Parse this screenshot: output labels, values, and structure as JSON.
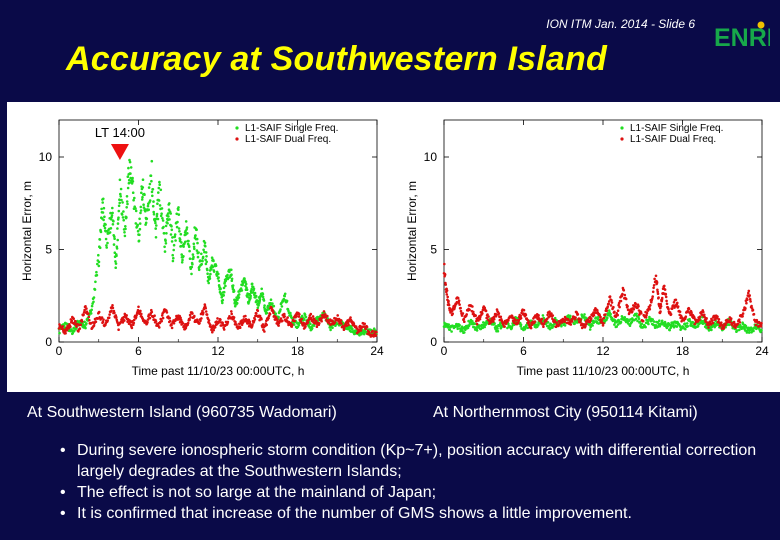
{
  "slide": {
    "header": "ION ITM Jan. 2014 - Slide 6",
    "logo_text": "ENRI",
    "title": "Accuracy at Southwestern Island"
  },
  "colors": {
    "background": "#0a0a48",
    "title": "#ffff00",
    "single_freq": "#22dd22",
    "dual_freq": "#dd1111",
    "marker": "#ee1111"
  },
  "chart_data": [
    {
      "type": "scatter",
      "title": "",
      "annotation": "LT 14:00",
      "annotation_x": 4.6,
      "xlabel": "Time past 11/10/23 00:00UTC, h",
      "ylabel": "Horizontal Error, m",
      "xlim": [
        0,
        24
      ],
      "ylim": [
        0,
        12
      ],
      "xticks": [
        "0",
        "6",
        "12",
        "18",
        "24"
      ],
      "yticks": [
        "0",
        "5",
        "10"
      ],
      "legend": [
        "L1-SAIF Single Freq.",
        "L1-SAIF Dual Freq."
      ],
      "legend_position": "top-right",
      "series": [
        {
          "name": "L1-SAIF Single Freq.",
          "points": [
            [
              0,
              0.6
            ],
            [
              0.5,
              0.9
            ],
            [
              1,
              0.6
            ],
            [
              1.5,
              1.1
            ],
            [
              2,
              0.9
            ],
            [
              2.5,
              1.8
            ],
            [
              3,
              4.5
            ],
            [
              3.3,
              7.5
            ],
            [
              3.6,
              5.5
            ],
            [
              4,
              7.0
            ],
            [
              4.3,
              4.2
            ],
            [
              4.6,
              8.5
            ],
            [
              5,
              6.0
            ],
            [
              5.3,
              9.6
            ],
            [
              5.6,
              8.0
            ],
            [
              6,
              5.5
            ],
            [
              6.3,
              8.5
            ],
            [
              6.6,
              6.5
            ],
            [
              7,
              9.0
            ],
            [
              7.3,
              6.0
            ],
            [
              7.6,
              8.2
            ],
            [
              8,
              5.2
            ],
            [
              8.3,
              7.6
            ],
            [
              8.6,
              4.8
            ],
            [
              9,
              7.0
            ],
            [
              9.3,
              4.5
            ],
            [
              9.6,
              6.0
            ],
            [
              10,
              3.8
            ],
            [
              10.3,
              6.2
            ],
            [
              10.6,
              4.0
            ],
            [
              11,
              5.2
            ],
            [
              11.3,
              3.2
            ],
            [
              11.6,
              4.4
            ],
            [
              12,
              3.6
            ],
            [
              12.3,
              2.2
            ],
            [
              12.6,
              3.4
            ],
            [
              13,
              3.8
            ],
            [
              13.3,
              2.0
            ],
            [
              13.6,
              2.6
            ],
            [
              14,
              3.4
            ],
            [
              14.3,
              2.2
            ],
            [
              14.6,
              3.0
            ],
            [
              15,
              2.0
            ],
            [
              15.3,
              2.8
            ],
            [
              15.6,
              1.6
            ],
            [
              16,
              2.2
            ],
            [
              16.5,
              1.2
            ],
            [
              17,
              2.6
            ],
            [
              17.5,
              1.3
            ],
            [
              18,
              0.9
            ],
            [
              18.5,
              1.4
            ],
            [
              19,
              0.8
            ],
            [
              19.5,
              1.2
            ],
            [
              20,
              1.5
            ],
            [
              20.5,
              0.8
            ],
            [
              21,
              1.1
            ],
            [
              21.5,
              0.9
            ],
            [
              22,
              0.7
            ],
            [
              22.5,
              0.5
            ],
            [
              23,
              0.6
            ],
            [
              23.5,
              0.5
            ],
            [
              24,
              0.6
            ]
          ]
        },
        {
          "name": "L1-SAIF Dual Freq.",
          "points": [
            [
              0,
              0.9
            ],
            [
              0.5,
              0.5
            ],
            [
              1,
              1.2
            ],
            [
              1.5,
              0.7
            ],
            [
              2,
              1.8
            ],
            [
              2.5,
              0.8
            ],
            [
              3,
              1.5
            ],
            [
              3.5,
              0.9
            ],
            [
              4,
              1.9
            ],
            [
              4.5,
              0.8
            ],
            [
              5,
              1.4
            ],
            [
              5.5,
              0.9
            ],
            [
              6,
              1.8
            ],
            [
              6.5,
              1.0
            ],
            [
              7,
              1.6
            ],
            [
              7.5,
              0.8
            ],
            [
              8,
              1.7
            ],
            [
              8.5,
              0.9
            ],
            [
              9,
              1.4
            ],
            [
              9.5,
              0.8
            ],
            [
              10,
              1.5
            ],
            [
              10.5,
              1.0
            ],
            [
              11,
              1.9
            ],
            [
              11.5,
              0.6
            ],
            [
              12,
              1.2
            ],
            [
              12.5,
              0.8
            ],
            [
              13,
              1.5
            ],
            [
              13.5,
              0.7
            ],
            [
              14,
              1.3
            ],
            [
              14.5,
              0.9
            ],
            [
              15,
              1.6
            ],
            [
              15.5,
              0.7
            ],
            [
              16,
              1.8
            ],
            [
              16.5,
              1.0
            ],
            [
              17,
              1.4
            ],
            [
              17.5,
              0.9
            ],
            [
              18,
              1.6
            ],
            [
              18.5,
              0.8
            ],
            [
              19,
              1.4
            ],
            [
              19.5,
              0.9
            ],
            [
              20,
              1.5
            ],
            [
              20.5,
              1.0
            ],
            [
              21,
              1.3
            ],
            [
              21.5,
              0.8
            ],
            [
              22,
              1.2
            ],
            [
              22.5,
              0.6
            ],
            [
              23,
              0.9
            ],
            [
              23.5,
              0.4
            ],
            [
              24,
              0.5
            ]
          ]
        }
      ]
    },
    {
      "type": "scatter",
      "title": "",
      "xlabel": "Time past 11/10/23 00:00UTC, h",
      "ylabel": "Horizontal Error, m",
      "xlim": [
        0,
        24
      ],
      "ylim": [
        0,
        12
      ],
      "xticks": [
        "0",
        "6",
        "12",
        "18",
        "24"
      ],
      "yticks": [
        "0",
        "5",
        "10"
      ],
      "legend": [
        "L1-SAIF Single Freq.",
        "L1-SAIF Dual Freq."
      ],
      "legend_position": "top-right",
      "series": [
        {
          "name": "L1-SAIF Single Freq.",
          "points": [
            [
              0,
              1.0
            ],
            [
              0.5,
              0.7
            ],
            [
              1,
              0.9
            ],
            [
              1.5,
              0.6
            ],
            [
              2,
              1.1
            ],
            [
              2.5,
              0.7
            ],
            [
              3,
              0.9
            ],
            [
              3.5,
              1.2
            ],
            [
              4,
              0.7
            ],
            [
              4.5,
              1.0
            ],
            [
              5,
              0.8
            ],
            [
              5.5,
              1.3
            ],
            [
              6,
              0.7
            ],
            [
              6.5,
              1.0
            ],
            [
              7,
              0.9
            ],
            [
              7.5,
              1.3
            ],
            [
              8,
              0.8
            ],
            [
              8.5,
              1.2
            ],
            [
              9,
              0.9
            ],
            [
              9.5,
              1.4
            ],
            [
              10,
              1.0
            ],
            [
              10.5,
              1.5
            ],
            [
              11,
              0.8
            ],
            [
              11.5,
              1.2
            ],
            [
              12,
              1.1
            ],
            [
              12.5,
              1.6
            ],
            [
              13,
              0.9
            ],
            [
              13.5,
              1.3
            ],
            [
              14,
              1.0
            ],
            [
              14.5,
              1.4
            ],
            [
              15,
              0.8
            ],
            [
              15.5,
              1.2
            ],
            [
              16,
              0.9
            ],
            [
              16.5,
              1.1
            ],
            [
              17,
              0.8
            ],
            [
              17.5,
              1.0
            ],
            [
              18,
              0.7
            ],
            [
              18.5,
              1.1
            ],
            [
              19,
              0.8
            ],
            [
              19.5,
              1.2
            ],
            [
              20,
              0.7
            ],
            [
              20.5,
              1.0
            ],
            [
              21,
              0.8
            ],
            [
              21.5,
              1.1
            ],
            [
              22,
              0.7
            ],
            [
              22.5,
              0.9
            ],
            [
              23,
              0.6
            ],
            [
              23.5,
              0.8
            ],
            [
              24,
              0.7
            ]
          ]
        },
        {
          "name": "L1-SAIF Dual Freq.",
          "points": [
            [
              0,
              4.0
            ],
            [
              0.3,
              2.2
            ],
            [
              0.6,
              1.5
            ],
            [
              1,
              2.4
            ],
            [
              1.5,
              1.2
            ],
            [
              2,
              2.0
            ],
            [
              2.5,
              1.1
            ],
            [
              3,
              1.8
            ],
            [
              3.5,
              1.0
            ],
            [
              4,
              1.6
            ],
            [
              4.5,
              0.9
            ],
            [
              5,
              1.5
            ],
            [
              5.5,
              1.0
            ],
            [
              6,
              1.7
            ],
            [
              6.5,
              0.8
            ],
            [
              7,
              1.4
            ],
            [
              7.5,
              1.0
            ],
            [
              8,
              1.6
            ],
            [
              8.5,
              0.9
            ],
            [
              9,
              1.3
            ],
            [
              9.5,
              1.0
            ],
            [
              10,
              1.5
            ],
            [
              10.5,
              0.8
            ],
            [
              11,
              1.2
            ],
            [
              11.5,
              1.8
            ],
            [
              12,
              1.0
            ],
            [
              12.5,
              2.4
            ],
            [
              13,
              1.3
            ],
            [
              13.5,
              2.8
            ],
            [
              14,
              1.5
            ],
            [
              14.5,
              2.1
            ],
            [
              15,
              1.2
            ],
            [
              15.5,
              1.8
            ],
            [
              16,
              3.5
            ],
            [
              16.3,
              1.6
            ],
            [
              16.6,
              3.0
            ],
            [
              17,
              1.4
            ],
            [
              17.5,
              2.2
            ],
            [
              18,
              1.1
            ],
            [
              18.5,
              1.8
            ],
            [
              19,
              1.0
            ],
            [
              19.5,
              1.6
            ],
            [
              20,
              0.9
            ],
            [
              20.5,
              1.4
            ],
            [
              21,
              0.8
            ],
            [
              21.5,
              1.2
            ],
            [
              22,
              0.9
            ],
            [
              22.5,
              1.4
            ],
            [
              23,
              2.6
            ],
            [
              23.5,
              1.1
            ],
            [
              24,
              0.9
            ]
          ]
        }
      ]
    }
  ],
  "captions": {
    "left": "At Southwestern Island (960735 Wadomari)",
    "right": "At Northernmost City (950114 Kitami)"
  },
  "bullets": [
    {
      "symbol": "•",
      "text": "During severe ionospheric storm condition (Kp~7+), position accuracy with differential correction largely degrades at the Southwestern Islands;"
    },
    {
      "symbol": "•",
      "text": "The effect is not so large at the mainland of Japan;"
    },
    {
      "symbol": "•",
      "text": "It is confirmed that increase of the number of GMS shows a little improvement."
    }
  ]
}
